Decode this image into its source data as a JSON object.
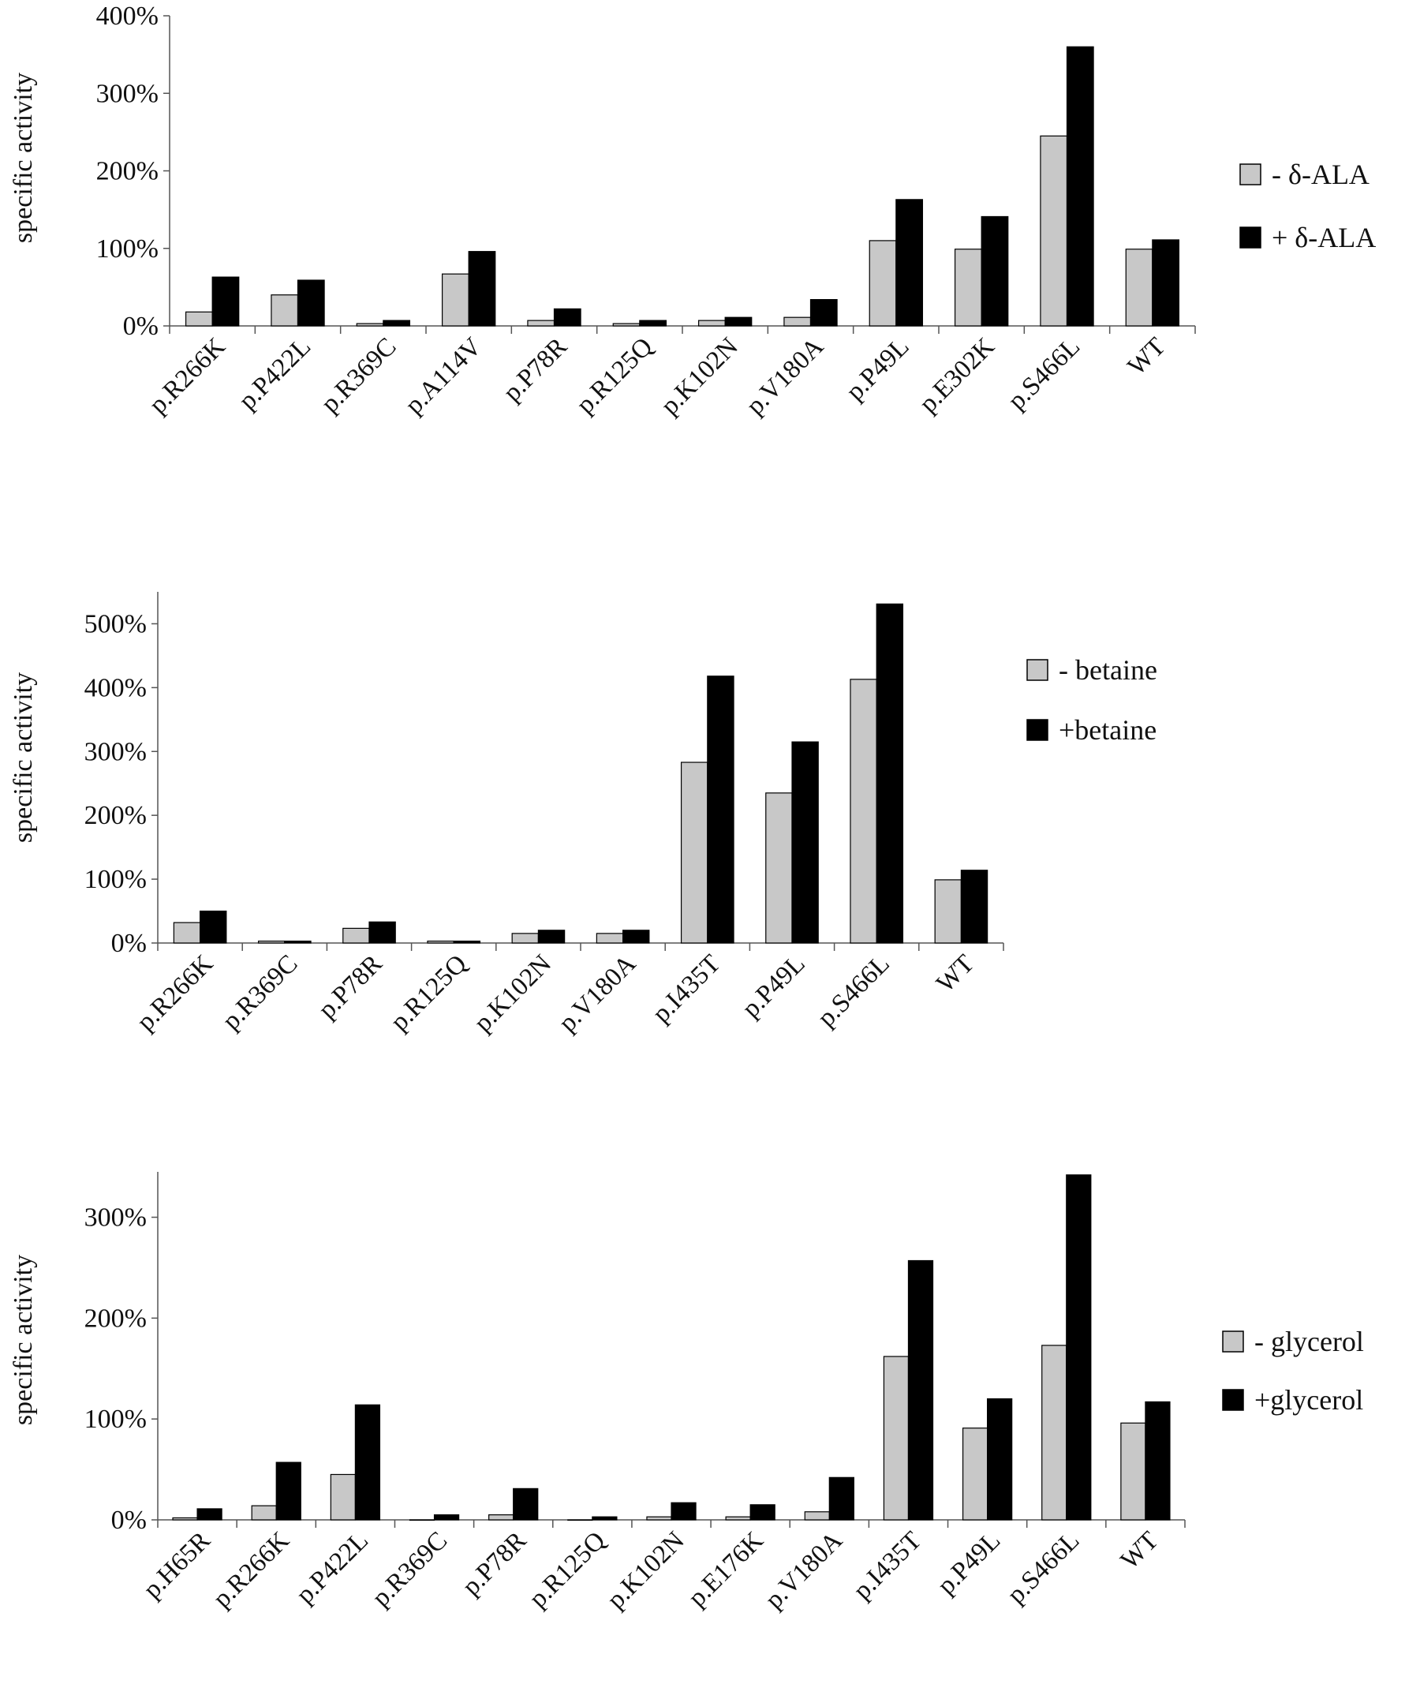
{
  "chart_data": [
    {
      "type": "bar",
      "ylabel": "specific activity",
      "ylim": [
        0,
        400
      ],
      "yticks": [
        0,
        100,
        200,
        300,
        400
      ],
      "tick_suffix": "%",
      "categories": [
        "p.R266K",
        "p.P422L",
        "p.R369C",
        "p.A114V",
        "p.P78R",
        "p.R125Q",
        "p.K102N",
        "p.V180A",
        "p.P49L",
        "p.E302K",
        "p.S466L",
        "WT"
      ],
      "series": [
        {
          "name": "- δ-ALA",
          "color": "#c8c8c8",
          "values": [
            18,
            40,
            3,
            67,
            7,
            3,
            7,
            11,
            110,
            99,
            245,
            99
          ]
        },
        {
          "name": "+ δ-ALA",
          "color": "#000000",
          "values": [
            63,
            59,
            7,
            96,
            22,
            7,
            11,
            34,
            163,
            141,
            360,
            111
          ]
        }
      ],
      "legend": "right"
    },
    {
      "type": "bar",
      "ylabel": "specific activity",
      "ylim": [
        0,
        550
      ],
      "yticks": [
        0,
        100,
        200,
        300,
        400,
        500
      ],
      "tick_suffix": "%",
      "categories": [
        "p.R266K",
        "p.R369C",
        "p.P78R",
        "p.R125Q",
        "p.K102N",
        "p.V180A",
        "p.I435T",
        "p.P49L",
        "p.S466L",
        "WT"
      ],
      "series": [
        {
          "name": "- betaine",
          "color": "#c8c8c8",
          "values": [
            32,
            3,
            23,
            3,
            15,
            15,
            283,
            235,
            413,
            99
          ]
        },
        {
          "name": "+betaine",
          "color": "#000000",
          "values": [
            50,
            3,
            33,
            3,
            20,
            20,
            418,
            315,
            531,
            114
          ]
        }
      ],
      "legend": "right"
    },
    {
      "type": "bar",
      "ylabel": "specific activity",
      "ylim": [
        0,
        345
      ],
      "yticks": [
        0,
        100,
        200,
        300
      ],
      "tick_suffix": "%",
      "categories": [
        "p.H65R",
        "p.R266K",
        "p.P422L",
        "p.R369C",
        "p.P78R",
        "p.R125Q",
        "p.K102N",
        "p.E176K",
        "p.V180A",
        "p.I435T",
        "p.P49L",
        "p.S466L",
        "WT"
      ],
      "series": [
        {
          "name": "- glycerol",
          "color": "#c8c8c8",
          "values": [
            2,
            14,
            45,
            0,
            5,
            0,
            3,
            3,
            8,
            162,
            91,
            173,
            96
          ]
        },
        {
          "name": "+glycerol",
          "color": "#000000",
          "values": [
            11,
            57,
            114,
            5,
            31,
            3,
            17,
            15,
            42,
            257,
            120,
            342,
            117
          ]
        }
      ],
      "legend": "right"
    }
  ]
}
